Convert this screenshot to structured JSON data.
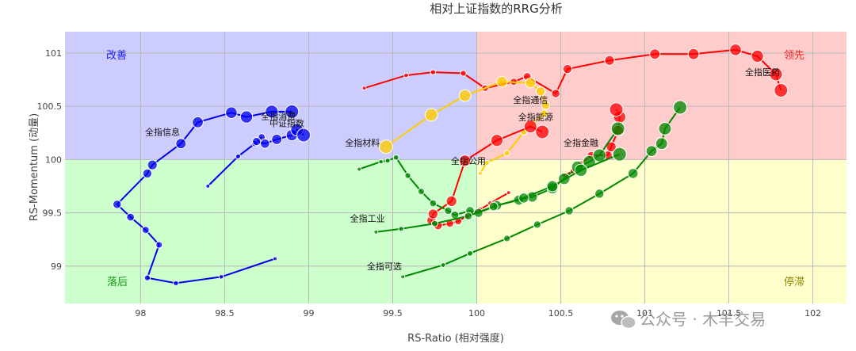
{
  "chart_data": {
    "type": "scatter",
    "title": "相对上证指数的RRG分析",
    "xlabel": "RS-Ratio (相对强度)",
    "ylabel": "RS-Momentum (动量)",
    "xlim": [
      97.55,
      102.2
    ],
    "ylim": [
      98.65,
      101.2
    ],
    "x_ticks": [
      98,
      98.5,
      99,
      99.5,
      100,
      100.5,
      101,
      101.5,
      102
    ],
    "x_tick_labels": [
      "98",
      "98.5",
      "99",
      "99.5",
      "100",
      "100.5",
      "101",
      "101.5",
      "102"
    ],
    "y_ticks": [
      99,
      99.5,
      100,
      100.5,
      101
    ],
    "y_tick_labels": [
      "99",
      "99.5",
      "100",
      "100.5",
      "101"
    ],
    "grid": true,
    "center": [
      100,
      100
    ],
    "quadrants": [
      {
        "key": "improving",
        "label": "改善",
        "fill": "#ccccff",
        "text_color": "#1a1aff"
      },
      {
        "key": "leading",
        "label": "领先",
        "fill": "#ffcccc",
        "text_color": "#ff2222"
      },
      {
        "key": "lagging",
        "label": "落后",
        "fill": "#ccffcc",
        "text_color": "#119911"
      },
      {
        "key": "weakening",
        "label": "停滞",
        "fill": "#ffffcc",
        "text_color": "#888800"
      }
    ],
    "series": [
      {
        "name": "全指信息",
        "color": "#0000ee",
        "label_at": [
          98.13,
          100.23
        ],
        "x": [
          98.8,
          98.48,
          98.21,
          98.04,
          98.11,
          98.03,
          97.94,
          97.86,
          98.04,
          98.07,
          98.24,
          98.34,
          98.54,
          98.63,
          98.78,
          98.9
        ],
        "y": [
          99.07,
          98.9,
          98.84,
          98.89,
          99.2,
          99.34,
          99.46,
          99.58,
          99.87,
          99.95,
          100.15,
          100.35,
          100.44,
          100.4,
          100.45,
          100.45
        ]
      },
      {
        "name": "全指消费",
        "color": "#0000ee",
        "label_at": [
          98.82,
          100.38
        ],
        "x": [
          98.4,
          98.58,
          98.68,
          98.72,
          98.69,
          98.74,
          98.81,
          98.9,
          98.93,
          98.97
        ],
        "y": [
          99.75,
          100.03,
          100.15,
          100.21,
          100.17,
          100.15,
          100.19,
          100.23,
          100.28,
          100.23
        ]
      },
      {
        "name": "中证指数",
        "color": "#0000ee",
        "label_at": [
          98.87,
          100.31
        ],
        "x": [],
        "y": []
      },
      {
        "name": "全指医药",
        "color": "#ff0000",
        "label_at": [
          101.7,
          100.79
        ],
        "x": [
          99.33,
          99.58,
          99.74,
          99.92,
          100.05,
          100.22,
          100.3,
          100.47,
          100.54,
          100.79,
          101.06,
          101.29,
          101.54,
          101.67,
          101.78,
          101.81
        ],
        "y": [
          100.67,
          100.79,
          100.82,
          100.81,
          100.67,
          100.73,
          100.78,
          100.62,
          100.85,
          100.93,
          100.99,
          100.99,
          101.03,
          100.97,
          100.8,
          100.65
        ]
      },
      {
        "name": "全指通信",
        "color": "#ffcc00",
        "label_at": [
          100.32,
          100.53
        ],
        "x": [
          100.02,
          100.06,
          100.18,
          100.28,
          100.4,
          100.41,
          100.38,
          100.32,
          100.15,
          99.93,
          99.73,
          99.46
        ],
        "y": [
          99.87,
          99.97,
          100.06,
          100.26,
          100.43,
          100.51,
          100.64,
          100.72,
          100.73,
          100.6,
          100.42,
          100.12
        ]
      },
      {
        "name": "全指材料",
        "color": "#ff0000",
        "label_at": [
          99.32,
          100.13
        ],
        "x": [
          100.19,
          100.08,
          100.02,
          99.94,
          99.89,
          99.84,
          99.77,
          99.73,
          99.74,
          99.85,
          99.93,
          100.12,
          100.32,
          100.39
        ],
        "y": [
          99.69,
          99.59,
          99.53,
          99.47,
          99.42,
          99.4,
          99.38,
          99.43,
          99.49,
          99.61,
          99.99,
          100.18,
          100.31,
          100.26
        ]
      },
      {
        "name": "全指能源",
        "color": "#ff0000",
        "label_at": [
          100.35,
          100.37
        ],
        "x": [
          100.52,
          100.57,
          100.62,
          100.68,
          100.78,
          100.8,
          100.84,
          100.85,
          100.83
        ],
        "y": [
          99.85,
          99.89,
          99.96,
          100.04,
          100.04,
          100.12,
          100.27,
          100.4,
          100.47
        ]
      },
      {
        "name": "全指金融",
        "color": "#008800",
        "label_at": [
          100.62,
          100.13
        ],
        "x": [
          99.3,
          99.43,
          99.47,
          99.52,
          99.59,
          99.67,
          99.74,
          99.83,
          99.87,
          99.96,
          100.01,
          100.12,
          100.25,
          100.33,
          100.45,
          100.52,
          100.6,
          100.67,
          100.73,
          100.84
        ],
        "y": [
          99.91,
          99.98,
          99.99,
          100.02,
          99.85,
          99.7,
          99.59,
          99.52,
          99.48,
          99.52,
          99.5,
          99.57,
          99.62,
          99.65,
          99.73,
          99.82,
          99.93,
          99.98,
          100.04,
          100.29
        ]
      },
      {
        "name": "全指公用",
        "color": "#ffcc00",
        "label_at": [
          99.95,
          99.96
        ],
        "x": [],
        "y": []
      },
      {
        "name": "全指工业",
        "color": "#008800",
        "label_at": [
          99.35,
          99.42
        ],
        "x": [
          99.4,
          99.55,
          99.75,
          99.95,
          100.1,
          100.28,
          100.45,
          100.62,
          100.85
        ],
        "y": [
          99.32,
          99.35,
          99.4,
          99.47,
          99.56,
          99.64,
          99.75,
          99.9,
          100.05
        ]
      },
      {
        "name": "全指可选",
        "color": "#008800",
        "label_at": [
          99.45,
          98.97
        ],
        "x": [
          99.56,
          99.8,
          99.96,
          100.18,
          100.36,
          100.55,
          100.73,
          100.93,
          101.04,
          101.1,
          101.12,
          101.21
        ],
        "y": [
          98.9,
          99.01,
          99.12,
          99.26,
          99.39,
          99.52,
          99.68,
          99.87,
          100.08,
          100.15,
          100.29,
          100.49
        ]
      }
    ]
  },
  "watermark": "公众号 · 木羊交易"
}
